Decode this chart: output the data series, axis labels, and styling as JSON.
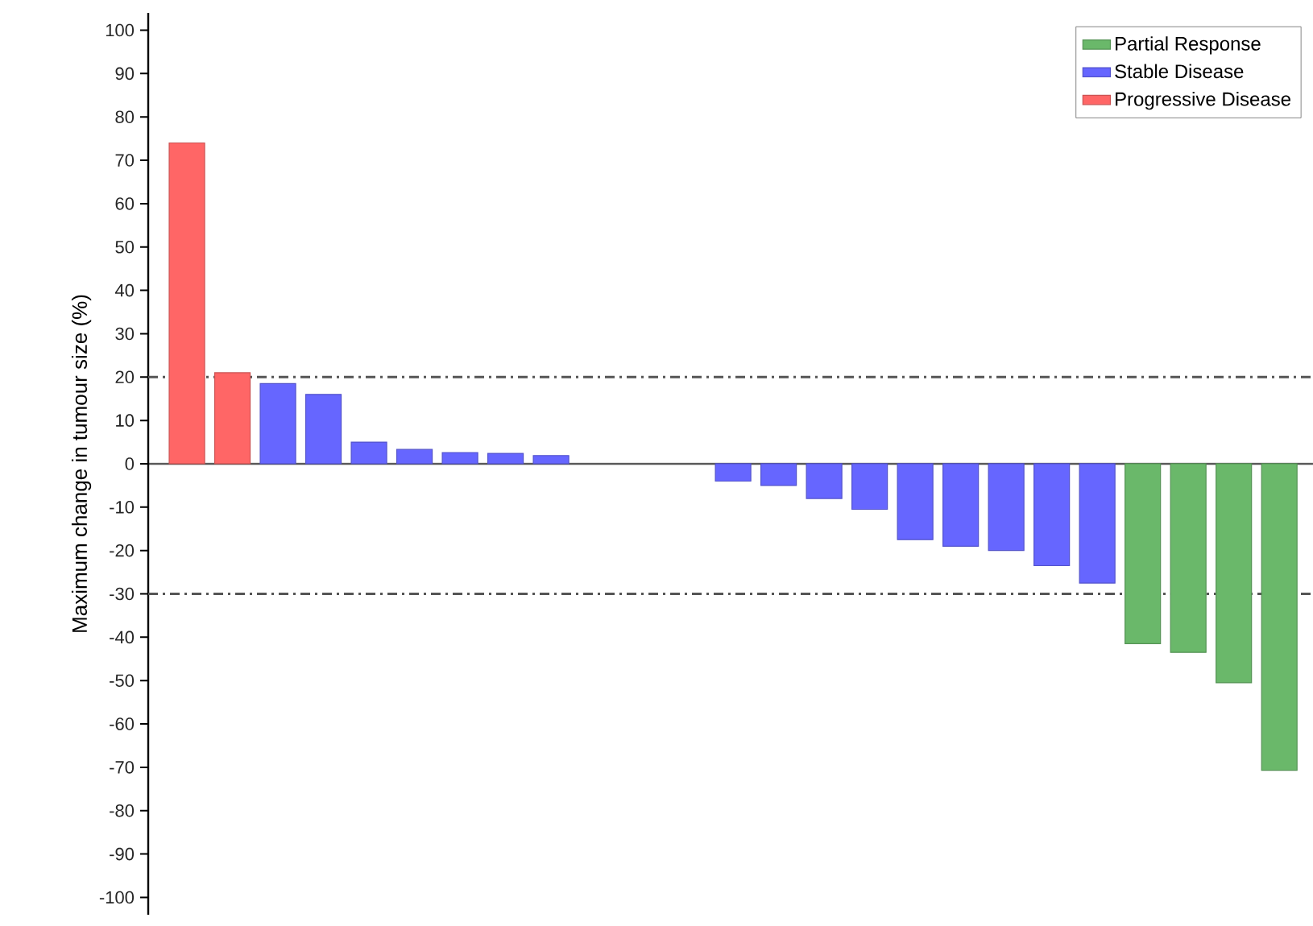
{
  "chart_data": {
    "type": "bar",
    "ylabel": "Maximum change in tumour size (%)",
    "categories": [
      null,
      null,
      null,
      null,
      null,
      null,
      null,
      null,
      null,
      null,
      null,
      null,
      null,
      null,
      null,
      null,
      null,
      null,
      null,
      null,
      null,
      null,
      null,
      null,
      null
    ],
    "series": [
      {
        "name": "Partial Response",
        "color": "#6ab86a",
        "values": [
          null,
          null,
          null,
          null,
          null,
          null,
          null,
          null,
          null,
          null,
          null,
          null,
          null,
          null,
          null,
          null,
          null,
          null,
          null,
          null,
          null,
          -41.5,
          -43.5,
          -50.5,
          -70.7
        ]
      },
      {
        "name": "Stable Disease",
        "color": "#6666ff",
        "values": [
          null,
          null,
          18.5,
          16,
          5,
          3.3,
          2.6,
          2.4,
          1.9,
          null,
          null,
          null,
          -4,
          -5,
          -8,
          -10.5,
          -17.5,
          -19,
          -20,
          -23.5,
          -27.5,
          null,
          null,
          null,
          null
        ]
      },
      {
        "name": "Progressive Disease",
        "color": "#ff6666",
        "values": [
          74,
          21,
          null,
          null,
          null,
          null,
          null,
          null,
          null,
          null,
          null,
          null,
          null,
          null,
          null,
          null,
          null,
          null,
          null,
          null,
          null,
          null,
          null,
          null,
          null
        ]
      }
    ],
    "ylim": [
      -104,
      104
    ],
    "yticks": [
      -100,
      -90,
      -80,
      -70,
      -60,
      -50,
      -40,
      -30,
      -20,
      -10,
      0,
      10,
      20,
      30,
      40,
      50,
      60,
      70,
      80,
      90,
      100
    ],
    "ref_lines": [
      {
        "axis": "y",
        "value": 20,
        "color": "#555555",
        "line_style": "dashdot"
      },
      {
        "axis": "y",
        "value": -30,
        "color": "#555555",
        "line_style": "dashdot"
      }
    ],
    "legend": "top right",
    "tick_labels": "y",
    "grid": false
  }
}
